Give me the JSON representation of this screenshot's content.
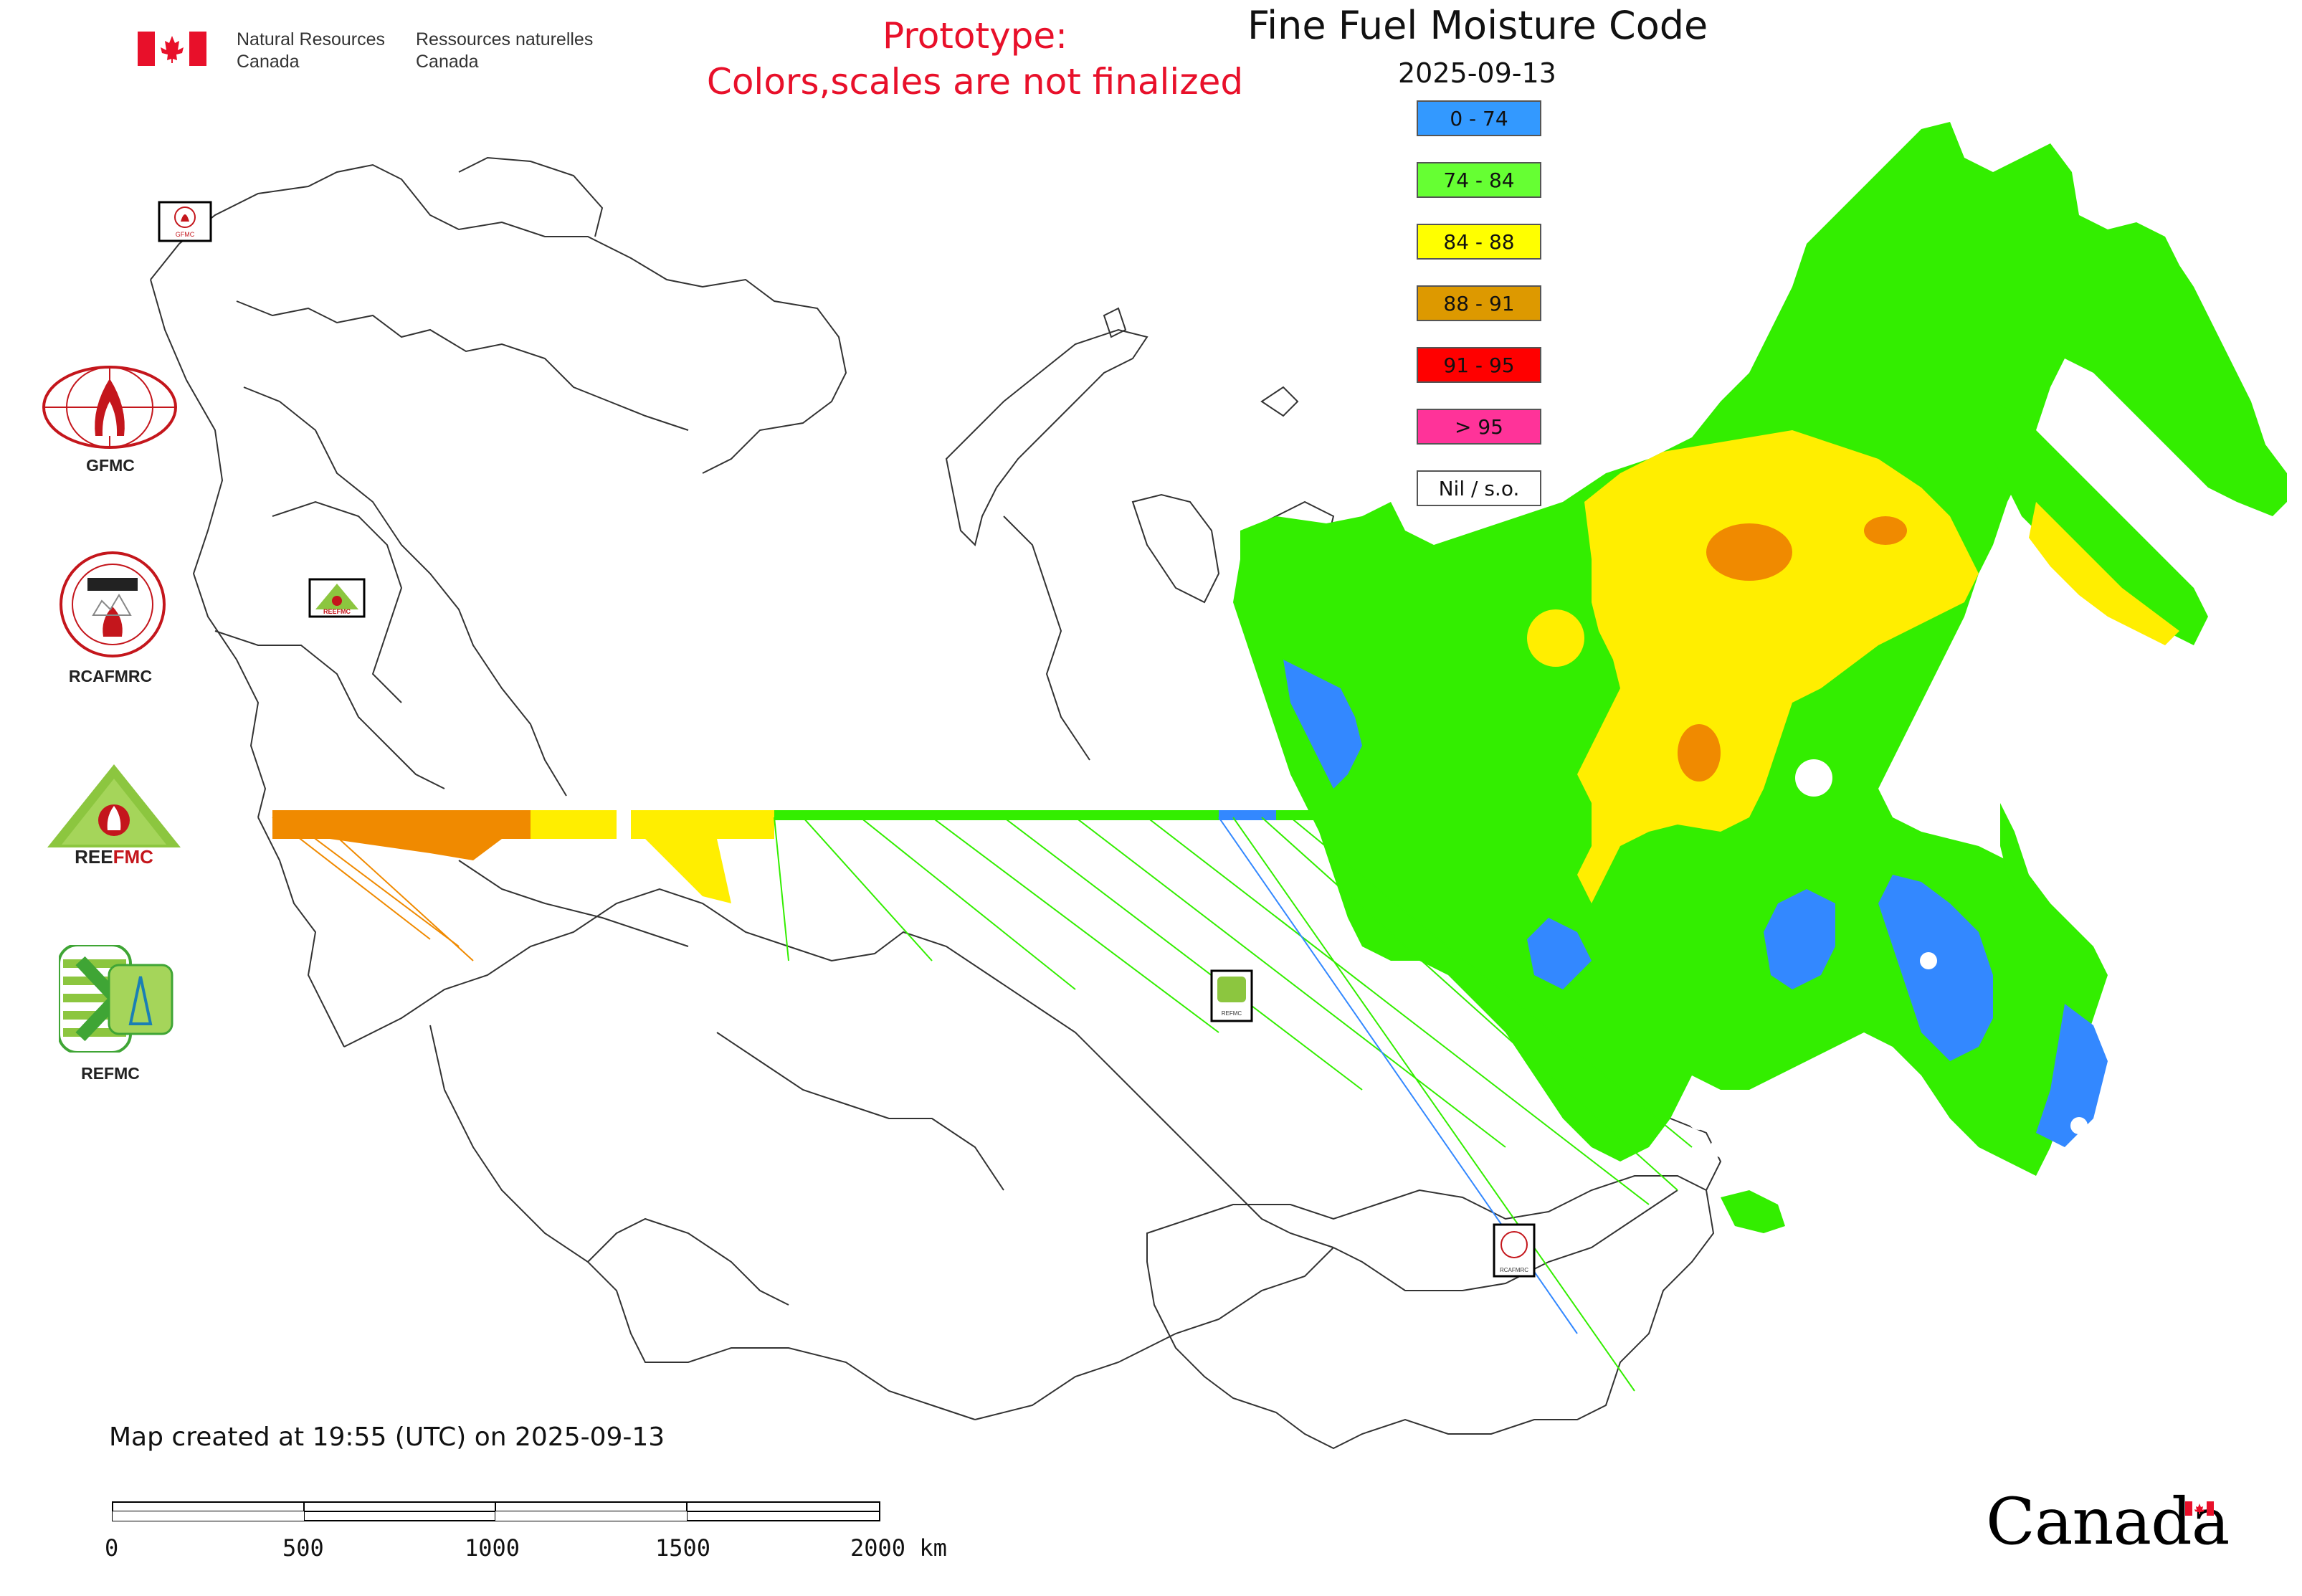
{
  "header": {
    "gov_en_line1": "Natural Resources",
    "gov_en_line2": "Canada",
    "gov_fr_line1": "Ressources naturelles",
    "gov_fr_line2": "Canada",
    "prototype_line1": "Prototype:",
    "prototype_line2": "Colors,scales are not finalized",
    "prototype_color": "#e8102a"
  },
  "map": {
    "title": "Fine Fuel Moisture Code",
    "date": "2025-09-13",
    "legend": [
      {
        "label": "0 - 74",
        "color": "#3399ff"
      },
      {
        "label": "74 - 84",
        "color": "#66ff33"
      },
      {
        "label": "84 - 88",
        "color": "#ffff00"
      },
      {
        "label": "88 - 91",
        "color": "#dd9900"
      },
      {
        "label": "91 - 95",
        "color": "#ff0000"
      },
      {
        "label": "> 95",
        "color": "#ff3399"
      },
      {
        "label": "Nil / s.o.",
        "color": "#ffffff"
      }
    ],
    "station_markers": [
      {
        "name": "GFMC",
        "label": "GFMC"
      },
      {
        "name": "REEFMC",
        "label": "REEFMC"
      },
      {
        "name": "REFMC",
        "label": "REFMC"
      },
      {
        "name": "RCAFMRC",
        "label": "RCAFMRC"
      }
    ]
  },
  "sidebar": {
    "logos": [
      {
        "label": "GFMC",
        "icon": "gfmc-logo-icon"
      },
      {
        "label": "RCAFMRC",
        "icon": "rcafmrc-logo-icon"
      },
      {
        "label": "REEFMC",
        "icon": "reefmc-logo-icon"
      },
      {
        "label": "REFMC",
        "icon": "refmc-logo-icon"
      }
    ]
  },
  "footer": {
    "created_text": "Map created at 19:55 (UTC) on 2025-09-13",
    "scale_labels": [
      "0",
      "500",
      "1000",
      "1500",
      "2000 km"
    ],
    "wordmark": "Canada"
  }
}
